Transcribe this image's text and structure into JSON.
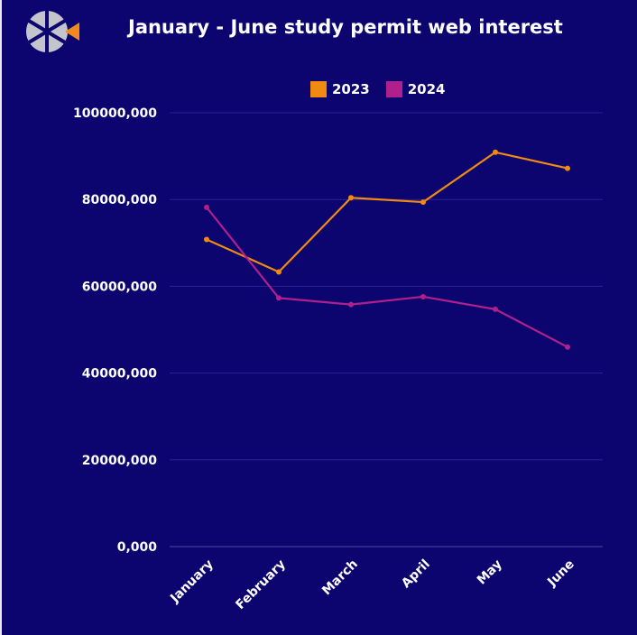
{
  "title": "January - June study permit web interest",
  "logo": {
    "icon": "pinwheel-logo-icon",
    "colors": [
      "#c9c9cf",
      "#f08a1c"
    ]
  },
  "chart_data": {
    "type": "line",
    "title": "January - June study permit web interest",
    "xlabel": "",
    "ylabel": "",
    "categories": [
      "January",
      "February",
      "March",
      "April",
      "May",
      "June"
    ],
    "y_tick_labels": [
      "0,000",
      "20000,000",
      "40000,000",
      "60000,000",
      "80000,000",
      "100000,000"
    ],
    "y_ticks": [
      0,
      20000000,
      40000000,
      60000000,
      80000000,
      100000000
    ],
    "ylim": [
      0,
      100000000
    ],
    "grid": true,
    "legend_position": "top-right",
    "series": [
      {
        "name": "2023",
        "color": "#f08a10",
        "values": [
          70800000,
          63300000,
          80400000,
          79400000,
          90900000,
          87200000
        ]
      },
      {
        "name": "2024",
        "color": "#b0208c",
        "values": [
          78200000,
          57300000,
          55800000,
          57600000,
          54700000,
          46000000
        ]
      }
    ]
  }
}
